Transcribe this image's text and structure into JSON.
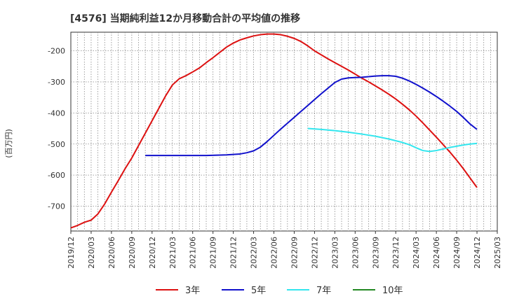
{
  "chart_data": {
    "type": "line",
    "title": "[4576]  当期純利益12か月移動合計の平均値の推移",
    "ylabel": "(百万円)",
    "xlabel": "",
    "x_ticks": [
      "2019/12",
      "2020/03",
      "2020/06",
      "2020/09",
      "2020/12",
      "2021/03",
      "2021/06",
      "2021/09",
      "2021/12",
      "2022/03",
      "2022/06",
      "2022/09",
      "2022/12",
      "2023/03",
      "2023/06",
      "2023/09",
      "2023/12",
      "2024/03",
      "2024/06",
      "2024/09",
      "2024/12",
      "2025/03"
    ],
    "y_ticks": [
      -200,
      -300,
      -400,
      -500,
      -600,
      -700
    ],
    "ylim": [
      -780,
      -140
    ],
    "grid": true,
    "legend_position": "bottom",
    "series": [
      {
        "name": "3年",
        "color": "#dd1111",
        "points": [
          [
            "2019/12",
            -770
          ],
          [
            "2020/01",
            -762
          ],
          [
            "2020/02",
            -752
          ],
          [
            "2020/03",
            -745
          ],
          [
            "2020/04",
            -725
          ],
          [
            "2020/05",
            -693
          ],
          [
            "2020/06",
            -655
          ],
          [
            "2020/07",
            -618
          ],
          [
            "2020/08",
            -580
          ],
          [
            "2020/09",
            -545
          ],
          [
            "2020/10",
            -505
          ],
          [
            "2020/11",
            -465
          ],
          [
            "2020/12",
            -425
          ],
          [
            "2021/01",
            -385
          ],
          [
            "2021/02",
            -345
          ],
          [
            "2021/03",
            -310
          ],
          [
            "2021/04",
            -290
          ],
          [
            "2021/05",
            -280
          ],
          [
            "2021/06",
            -268
          ],
          [
            "2021/07",
            -255
          ],
          [
            "2021/08",
            -238
          ],
          [
            "2021/09",
            -222
          ],
          [
            "2021/10",
            -205
          ],
          [
            "2021/11",
            -188
          ],
          [
            "2021/12",
            -175
          ],
          [
            "2022/01",
            -165
          ],
          [
            "2022/02",
            -158
          ],
          [
            "2022/03",
            -152
          ],
          [
            "2022/04",
            -148
          ],
          [
            "2022/05",
            -146
          ],
          [
            "2022/06",
            -146
          ],
          [
            "2022/07",
            -148
          ],
          [
            "2022/08",
            -153
          ],
          [
            "2022/09",
            -160
          ],
          [
            "2022/10",
            -170
          ],
          [
            "2022/11",
            -184
          ],
          [
            "2022/12",
            -200
          ],
          [
            "2023/01",
            -213
          ],
          [
            "2023/02",
            -226
          ],
          [
            "2023/03",
            -238
          ],
          [
            "2023/04",
            -250
          ],
          [
            "2023/05",
            -262
          ],
          [
            "2023/06",
            -275
          ],
          [
            "2023/07",
            -288
          ],
          [
            "2023/08",
            -300
          ],
          [
            "2023/09",
            -313
          ],
          [
            "2023/10",
            -326
          ],
          [
            "2023/11",
            -340
          ],
          [
            "2023/12",
            -355
          ],
          [
            "2024/01",
            -372
          ],
          [
            "2024/02",
            -390
          ],
          [
            "2024/03",
            -410
          ],
          [
            "2024/04",
            -432
          ],
          [
            "2024/05",
            -455
          ],
          [
            "2024/06",
            -478
          ],
          [
            "2024/07",
            -502
          ],
          [
            "2024/08",
            -526
          ],
          [
            "2024/09",
            -552
          ],
          [
            "2024/10",
            -580
          ],
          [
            "2024/11",
            -610
          ],
          [
            "2024/12",
            -640
          ]
        ]
      },
      {
        "name": "5年",
        "color": "#1111cc",
        "points": [
          [
            "2020/11",
            -537
          ],
          [
            "2021/02",
            -537
          ],
          [
            "2021/05",
            -537
          ],
          [
            "2021/08",
            -537
          ],
          [
            "2021/11",
            -535
          ],
          [
            "2022/01",
            -532
          ],
          [
            "2022/02",
            -528
          ],
          [
            "2022/03",
            -522
          ],
          [
            "2022/04",
            -510
          ],
          [
            "2022/05",
            -492
          ],
          [
            "2022/06",
            -472
          ],
          [
            "2022/07",
            -452
          ],
          [
            "2022/08",
            -433
          ],
          [
            "2022/09",
            -414
          ],
          [
            "2022/10",
            -395
          ],
          [
            "2022/11",
            -376
          ],
          [
            "2022/12",
            -357
          ],
          [
            "2023/01",
            -338
          ],
          [
            "2023/02",
            -320
          ],
          [
            "2023/03",
            -302
          ],
          [
            "2023/04",
            -291
          ],
          [
            "2023/05",
            -287
          ],
          [
            "2023/06",
            -286
          ],
          [
            "2023/07",
            -285
          ],
          [
            "2023/08",
            -283
          ],
          [
            "2023/09",
            -281
          ],
          [
            "2023/10",
            -280
          ],
          [
            "2023/11",
            -280
          ],
          [
            "2023/12",
            -282
          ],
          [
            "2024/01",
            -288
          ],
          [
            "2024/02",
            -297
          ],
          [
            "2024/03",
            -308
          ],
          [
            "2024/04",
            -320
          ],
          [
            "2024/05",
            -333
          ],
          [
            "2024/06",
            -347
          ],
          [
            "2024/07",
            -362
          ],
          [
            "2024/08",
            -378
          ],
          [
            "2024/09",
            -395
          ],
          [
            "2024/10",
            -415
          ],
          [
            "2024/11",
            -436
          ],
          [
            "2024/12",
            -453
          ]
        ]
      },
      {
        "name": "7年",
        "color": "#33e6ee",
        "points": [
          [
            "2022/11",
            -450
          ],
          [
            "2023/01",
            -453
          ],
          [
            "2023/03",
            -457
          ],
          [
            "2023/05",
            -462
          ],
          [
            "2023/07",
            -468
          ],
          [
            "2023/09",
            -475
          ],
          [
            "2023/11",
            -484
          ],
          [
            "2024/01",
            -495
          ],
          [
            "2024/02",
            -502
          ],
          [
            "2024/03",
            -512
          ],
          [
            "2024/04",
            -521
          ],
          [
            "2024/05",
            -524
          ],
          [
            "2024/06",
            -521
          ],
          [
            "2024/07",
            -516
          ],
          [
            "2024/08",
            -511
          ],
          [
            "2024/09",
            -507
          ],
          [
            "2024/10",
            -503
          ],
          [
            "2024/11",
            -500
          ],
          [
            "2024/12",
            -498
          ]
        ]
      },
      {
        "name": "10年",
        "color": "#228822",
        "points": []
      }
    ]
  }
}
